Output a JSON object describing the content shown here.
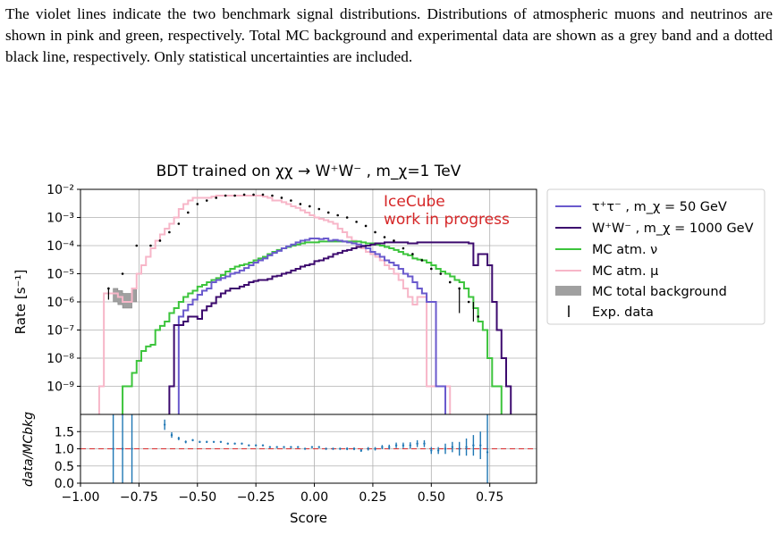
{
  "caption": "The violet lines indicate the two benchmark signal distributions. Distributions of atmospheric muons and neutrinos are shown in pink and green, respectively. Total MC background and experimental data are shown as a grey band and a dotted black line, respectively. Only statistical uncertainties are included.",
  "chart_data": {
    "type": "line",
    "title": "BDT trained on χχ → W⁺W⁻ , m_χ=1 TeV",
    "xlabel": "Score",
    "ylabel": "Rate [s⁻¹]",
    "ratio_ylabel": "data/MCbkg",
    "annotation": [
      "IceCube",
      "work in progress"
    ],
    "xlim": [
      -1.0,
      0.95
    ],
    "ylim": [
      1e-10,
      0.01
    ],
    "yscale": "log",
    "ratio_ylim": [
      0.0,
      2.0
    ],
    "grid": true,
    "legend_placement": "outside-right",
    "x_ticks": [
      "−1.00",
      "−0.75",
      "−0.50",
      "−0.25",
      "0.00",
      "0.25",
      "0.50",
      "0.75"
    ],
    "y_ticks": [
      "10⁻²",
      "10⁻³",
      "10⁻⁴",
      "10⁻⁵",
      "10⁻⁶",
      "10⁻⁷",
      "10⁻⁸",
      "10⁻⁹"
    ],
    "ratio_ticks": [
      "1.5",
      "1.0",
      "0.5",
      "0.0"
    ],
    "colors": {
      "tautau": "#6a5acd",
      "ww": "#3c0a6e",
      "nu": "#3cc43c",
      "mu": "#f7b6c8",
      "band": "#a0a0a0",
      "data": "#000000",
      "ratio": "#1f77b4",
      "ref": "#d62728"
    },
    "series": [
      {
        "name": "τ⁺τ⁻ , m_χ = 50 GeV",
        "key": "tautau",
        "x": [
          -0.58,
          -0.56,
          -0.54,
          -0.52,
          -0.5,
          -0.48,
          -0.46,
          -0.44,
          -0.42,
          -0.4,
          -0.38,
          -0.36,
          -0.34,
          -0.32,
          -0.3,
          -0.28,
          -0.26,
          -0.24,
          -0.22,
          -0.2,
          -0.18,
          -0.16,
          -0.14,
          -0.12,
          -0.1,
          -0.08,
          -0.06,
          -0.04,
          -0.02,
          0.0,
          0.02,
          0.04,
          0.06,
          0.08,
          0.1,
          0.12,
          0.14,
          0.16,
          0.18,
          0.2,
          0.22,
          0.24,
          0.26,
          0.28,
          0.3,
          0.32,
          0.34,
          0.36,
          0.38,
          0.4,
          0.42,
          0.44,
          0.46,
          0.48,
          0.5,
          0.52,
          0.54
        ],
        "y": [
          3e-07,
          5e-07,
          8e-07,
          1.2e-06,
          1.8e-06,
          2.5e-06,
          3e-06,
          5e-06,
          6e-06,
          7e-06,
          8e-06,
          1e-05,
          1.1e-05,
          1.3e-05,
          1.6e-05,
          2e-05,
          2.5e-05,
          3e-05,
          3.5e-05,
          4.5e-05,
          5.5e-05,
          6.5e-05,
          8e-05,
          9.5e-05,
          0.00011,
          0.00013,
          0.00015,
          0.00016,
          0.00018,
          0.00018,
          0.00017,
          0.00018,
          0.00015,
          0.00016,
          0.00015,
          0.00014,
          0.00013,
          0.00012,
          0.00011,
          0.0001,
          8e-05,
          6e-05,
          5e-05,
          4e-05,
          3e-05,
          2.5e-05,
          2e-05,
          1.5e-05,
          1e-05,
          8e-06,
          5e-06,
          3e-06,
          2e-06,
          1e-06,
          1e-06,
          1e-09,
          1e-09
        ]
      },
      {
        "name": "W⁺W⁻ , m_χ = 1000 GeV",
        "key": "ww",
        "x": [
          -0.62,
          -0.6,
          -0.58,
          -0.56,
          -0.54,
          -0.52,
          -0.5,
          -0.48,
          -0.46,
          -0.44,
          -0.42,
          -0.4,
          -0.38,
          -0.36,
          -0.34,
          -0.32,
          -0.3,
          -0.28,
          -0.26,
          -0.24,
          -0.22,
          -0.2,
          -0.18,
          -0.16,
          -0.14,
          -0.12,
          -0.1,
          -0.08,
          -0.06,
          -0.04,
          -0.02,
          0.0,
          0.02,
          0.04,
          0.06,
          0.08,
          0.1,
          0.12,
          0.14,
          0.16,
          0.18,
          0.2,
          0.22,
          0.24,
          0.26,
          0.28,
          0.3,
          0.32,
          0.34,
          0.36,
          0.38,
          0.4,
          0.42,
          0.44,
          0.46,
          0.48,
          0.5,
          0.52,
          0.54,
          0.56,
          0.58,
          0.6,
          0.62,
          0.64,
          0.66,
          0.68,
          0.7,
          0.72,
          0.74,
          0.76,
          0.78,
          0.8,
          0.82
        ],
        "y": [
          1e-09,
          1.5e-07,
          1.5e-07,
          2e-07,
          3e-07,
          3e-07,
          2.5e-07,
          5e-07,
          7e-07,
          9e-07,
          1.5e-06,
          2e-06,
          2.5e-06,
          3e-06,
          3e-06,
          3.5e-06,
          4e-06,
          5e-06,
          5.5e-06,
          6e-06,
          6e-06,
          6.5e-06,
          8e-06,
          8.5e-06,
          1e-05,
          1.1e-05,
          1.3e-05,
          1.5e-05,
          1.8e-05,
          2e-05,
          2.2e-05,
          2.8e-05,
          3e-05,
          3.5e-05,
          4e-05,
          5e-05,
          5.5e-05,
          6.5e-05,
          7e-05,
          8e-05,
          9e-05,
          9.5e-05,
          0.0001,
          0.00011,
          0.00012,
          0.00012,
          0.00013,
          0.00013,
          0.00013,
          0.00013,
          0.00013,
          0.00012,
          0.00012,
          0.00013,
          0.00013,
          0.00013,
          0.00013,
          0.00013,
          0.00013,
          0.00013,
          0.00013,
          0.00013,
          0.00013,
          0.00013,
          0.00012,
          2e-05,
          5e-05,
          5e-05,
          2e-05,
          1e-06,
          1e-07,
          1e-08,
          1e-09
        ]
      },
      {
        "name": "MC atm. ν",
        "key": "nu",
        "x": [
          -0.82,
          -0.8,
          -0.78,
          -0.76,
          -0.74,
          -0.72,
          -0.7,
          -0.68,
          -0.66,
          -0.64,
          -0.62,
          -0.6,
          -0.58,
          -0.56,
          -0.54,
          -0.52,
          -0.5,
          -0.48,
          -0.46,
          -0.44,
          -0.42,
          -0.4,
          -0.38,
          -0.36,
          -0.34,
          -0.32,
          -0.3,
          -0.28,
          -0.26,
          -0.24,
          -0.22,
          -0.2,
          -0.18,
          -0.16,
          -0.14,
          -0.12,
          -0.1,
          -0.08,
          -0.06,
          -0.04,
          -0.02,
          0.0,
          0.02,
          0.04,
          0.06,
          0.08,
          0.1,
          0.12,
          0.14,
          0.16,
          0.18,
          0.2,
          0.22,
          0.24,
          0.26,
          0.28,
          0.3,
          0.32,
          0.34,
          0.36,
          0.38,
          0.4,
          0.42,
          0.44,
          0.46,
          0.48,
          0.5,
          0.52,
          0.54,
          0.56,
          0.58,
          0.6,
          0.62,
          0.64,
          0.66,
          0.68,
          0.7,
          0.72,
          0.74,
          0.76,
          0.78
        ],
        "y": [
          1e-09,
          1e-09,
          3e-09,
          8e-09,
          1.8e-08,
          2.6e-08,
          3e-08,
          1e-07,
          1.4e-07,
          2e-07,
          4e-07,
          6e-07,
          1e-06,
          1.5e-06,
          2e-06,
          2.5e-06,
          3.5e-06,
          4e-06,
          5e-06,
          6e-06,
          7e-06,
          9e-06,
          1.2e-05,
          1.5e-05,
          1.8e-05,
          2e-05,
          2.2e-05,
          2.5e-05,
          3e-05,
          3.5e-05,
          4e-05,
          5e-05,
          6e-05,
          7e-05,
          8e-05,
          9e-05,
          0.0001,
          0.00011,
          0.00012,
          0.00013,
          0.00013,
          0.00013,
          0.00014,
          0.00014,
          0.00014,
          0.00014,
          0.00014,
          0.00014,
          0.00014,
          0.00014,
          0.00014,
          0.00013,
          0.00012,
          0.00012,
          0.00011,
          0.0001,
          9e-05,
          8e-05,
          7e-05,
          6e-05,
          5e-05,
          4.5e-05,
          3.5e-05,
          3.2e-05,
          3e-05,
          2.5e-05,
          2e-05,
          1.5e-05,
          1.2e-05,
          1e-05,
          8e-06,
          6e-06,
          5e-06,
          3e-06,
          1.5e-06,
          6e-07,
          2e-07,
          1e-07,
          1e-08,
          1e-09,
          1e-09
        ]
      },
      {
        "name": "MC atm. μ",
        "key": "mu",
        "x": [
          -0.92,
          -0.9,
          -0.88,
          -0.86,
          -0.84,
          -0.82,
          -0.8,
          -0.78,
          -0.76,
          -0.74,
          -0.72,
          -0.7,
          -0.68,
          -0.66,
          -0.64,
          -0.62,
          -0.6,
          -0.58,
          -0.56,
          -0.54,
          -0.52,
          -0.5,
          -0.48,
          -0.46,
          -0.44,
          -0.42,
          -0.4,
          -0.38,
          -0.36,
          -0.34,
          -0.32,
          -0.3,
          -0.28,
          -0.26,
          -0.24,
          -0.22,
          -0.2,
          -0.18,
          -0.16,
          -0.14,
          -0.12,
          -0.1,
          -0.08,
          -0.06,
          -0.04,
          -0.02,
          0.0,
          0.02,
          0.04,
          0.06,
          0.08,
          0.1,
          0.12,
          0.14,
          0.16,
          0.18,
          0.2,
          0.22,
          0.24,
          0.26,
          0.28,
          0.3,
          0.32,
          0.34,
          0.36,
          0.38,
          0.4,
          0.42,
          0.44,
          0.46,
          0.48,
          0.5,
          0.52,
          0.54,
          0.56
        ],
        "y": [
          1e-09,
          2e-06,
          2e-06,
          2e-06,
          1.5e-06,
          1e-06,
          1e-06,
          3e-06,
          1e-05,
          2e-05,
          4e-05,
          8e-05,
          0.00015,
          0.00025,
          0.0004,
          0.0006,
          0.001,
          0.002,
          0.003,
          0.004,
          0.005,
          0.005,
          0.005,
          0.005,
          0.0055,
          0.006,
          0.006,
          0.006,
          0.006,
          0.006,
          0.006,
          0.006,
          0.006,
          0.006,
          0.006,
          0.0055,
          0.005,
          0.004,
          0.004,
          0.0035,
          0.003,
          0.0025,
          0.0022,
          0.0018,
          0.0015,
          0.0012,
          0.001,
          0.0009,
          0.0008,
          0.0007,
          0.0006,
          0.0004,
          0.0003,
          0.0002,
          0.00015,
          0.0001,
          8e-05,
          6e-05,
          5e-05,
          4e-05,
          3e-05,
          2e-05,
          1.5e-05,
          1e-05,
          6e-06,
          3e-06,
          1.5e-06,
          8e-07,
          1.5e-06,
          1.5e-06,
          1e-09,
          1e-09,
          1e-09,
          1e-09,
          1e-09
        ]
      }
    ],
    "band": {
      "name": "MC total background",
      "x": [
        -0.86,
        -0.84,
        -0.82,
        -0.8,
        -0.78
      ],
      "low": [
        1e-06,
        8e-07,
        6e-07,
        6e-07,
        1e-06
      ],
      "high": [
        3e-06,
        2.5e-06,
        2e-06,
        2e-06,
        3e-06
      ]
    },
    "data_points": {
      "name": "Exp. data",
      "x": [
        -0.88,
        -0.82,
        -0.76,
        -0.7,
        -0.66,
        -0.62,
        -0.58,
        -0.54,
        -0.5,
        -0.46,
        -0.42,
        -0.38,
        -0.34,
        -0.3,
        -0.26,
        -0.22,
        -0.18,
        -0.14,
        -0.1,
        -0.06,
        -0.02,
        0.02,
        0.06,
        0.1,
        0.14,
        0.18,
        0.22,
        0.26,
        0.3,
        0.34,
        0.38,
        0.42,
        0.46,
        0.5,
        0.54,
        0.58,
        0.62,
        0.66,
        0.7
      ],
      "y": [
        3e-06,
        1e-05,
        0.0001,
        0.0001,
        0.00015,
        0.0003,
        0.0006,
        0.0015,
        0.003,
        0.004,
        0.005,
        0.006,
        0.006,
        0.0065,
        0.0065,
        0.0065,
        0.006,
        0.005,
        0.004,
        0.003,
        0.0025,
        0.002,
        0.0015,
        0.0012,
        0.001,
        0.0007,
        0.0005,
        0.0003,
        0.0002,
        0.00015,
        8e-05,
        5e-05,
        3e-05,
        1.5e-05,
        1e-05,
        5e-06,
        3e-06,
        1e-06,
        3e-07
      ]
    },
    "ratio": {
      "x": [
        -0.86,
        -0.82,
        -0.78,
        -0.64,
        -0.61,
        -0.58,
        -0.55,
        -0.52,
        -0.49,
        -0.46,
        -0.43,
        -0.4,
        -0.37,
        -0.34,
        -0.31,
        -0.28,
        -0.25,
        -0.22,
        -0.19,
        -0.16,
        -0.13,
        -0.1,
        -0.07,
        -0.04,
        -0.01,
        0.02,
        0.05,
        0.08,
        0.11,
        0.14,
        0.17,
        0.2,
        0.23,
        0.26,
        0.29,
        0.32,
        0.35,
        0.38,
        0.41,
        0.44,
        0.47,
        0.5,
        0.53,
        0.56,
        0.59,
        0.62,
        0.65,
        0.68,
        0.71,
        0.74
      ],
      "y": [
        1.0,
        1.0,
        1.0,
        1.7,
        1.4,
        1.3,
        1.2,
        1.25,
        1.2,
        1.2,
        1.2,
        1.2,
        1.15,
        1.15,
        1.15,
        1.1,
        1.1,
        1.1,
        1.05,
        1.05,
        1.05,
        1.05,
        1.05,
        1.0,
        1.05,
        1.05,
        1.0,
        1.0,
        1.0,
        1.0,
        1.0,
        0.95,
        1.0,
        1.0,
        1.05,
        1.05,
        1.1,
        1.1,
        1.1,
        1.15,
        1.15,
        0.95,
        0.95,
        1.0,
        1.05,
        1.0,
        1.05,
        1.1,
        1.1,
        0.9
      ],
      "err": [
        2.0,
        2.0,
        2.0,
        0.15,
        0.08,
        0.05,
        0.04,
        0.03,
        0.03,
        0.03,
        0.02,
        0.02,
        0.02,
        0.02,
        0.02,
        0.02,
        0.02,
        0.02,
        0.02,
        0.02,
        0.02,
        0.02,
        0.02,
        0.02,
        0.02,
        0.02,
        0.03,
        0.03,
        0.03,
        0.04,
        0.04,
        0.04,
        0.05,
        0.05,
        0.06,
        0.07,
        0.08,
        0.08,
        0.09,
        0.1,
        0.1,
        0.1,
        0.1,
        0.15,
        0.15,
        0.2,
        0.25,
        0.3,
        0.4,
        1.2
      ]
    }
  }
}
